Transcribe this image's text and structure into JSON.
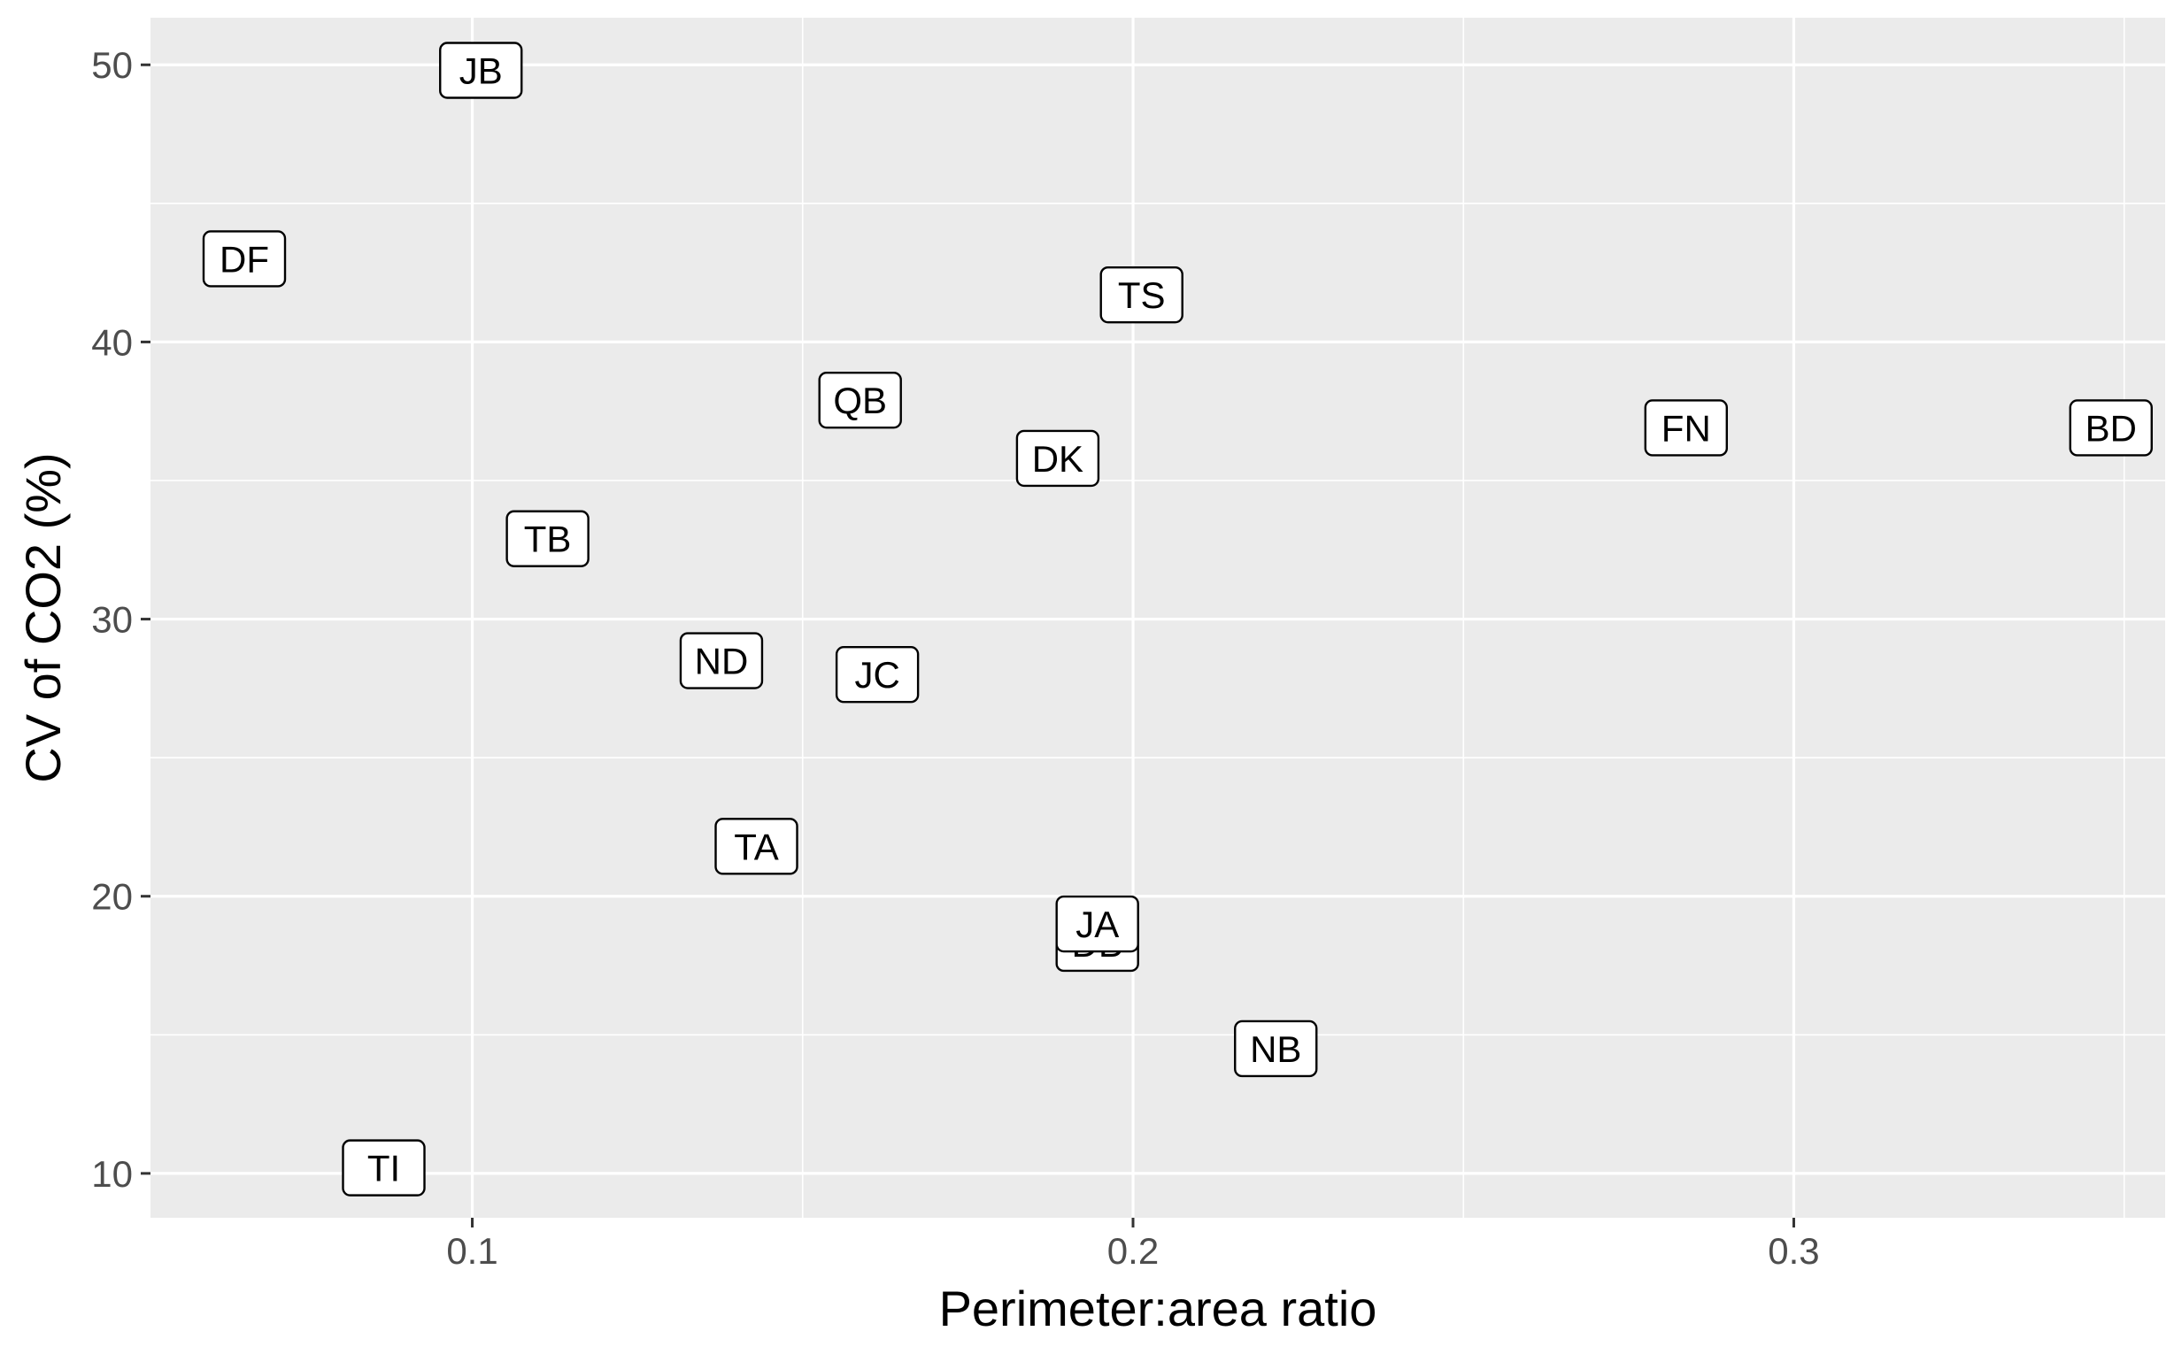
{
  "chart_data": {
    "type": "scatter",
    "title": "",
    "xlabel": "Perimeter:area ratio",
    "ylabel": "CV of CO2 (%)",
    "xlim": [
      0.0513,
      0.3562
    ],
    "ylim": [
      8.4,
      51.7
    ],
    "x_ticks": [
      0.1,
      0.2,
      0.3
    ],
    "x_tick_labels": [
      "0.1",
      "0.2",
      "0.3"
    ],
    "x_minor_ticks": [
      0.05,
      0.15,
      0.25,
      0.35
    ],
    "y_ticks": [
      10,
      20,
      30,
      40,
      50
    ],
    "y_tick_labels": [
      "10",
      "20",
      "30",
      "40",
      "50"
    ],
    "y_minor_ticks": [
      15,
      25,
      35,
      45
    ],
    "grid": true,
    "legend": "none",
    "point_style": "label",
    "points": [
      {
        "label": "JB",
        "x": 0.1013,
        "y": 49.8
      },
      {
        "label": "DF",
        "x": 0.0655,
        "y": 43.0
      },
      {
        "label": "TS",
        "x": 0.2013,
        "y": 41.7
      },
      {
        "label": "QB",
        "x": 0.1587,
        "y": 37.9
      },
      {
        "label": "DK",
        "x": 0.1886,
        "y": 35.8
      },
      {
        "label": "FN",
        "x": 0.2837,
        "y": 36.9
      },
      {
        "label": "BD",
        "x": 0.348,
        "y": 36.9
      },
      {
        "label": "TB",
        "x": 0.1114,
        "y": 32.9
      },
      {
        "label": "ND",
        "x": 0.1377,
        "y": 28.5
      },
      {
        "label": "JC",
        "x": 0.1613,
        "y": 28.0
      },
      {
        "label": "TA",
        "x": 0.143,
        "y": 21.8
      },
      {
        "label": "DB",
        "x": 0.1946,
        "y": 18.3
      },
      {
        "label": "JA",
        "x": 0.1946,
        "y": 19.0
      },
      {
        "label": "NB",
        "x": 0.2216,
        "y": 14.5
      },
      {
        "label": "TI",
        "x": 0.0866,
        "y": 10.2
      }
    ]
  }
}
